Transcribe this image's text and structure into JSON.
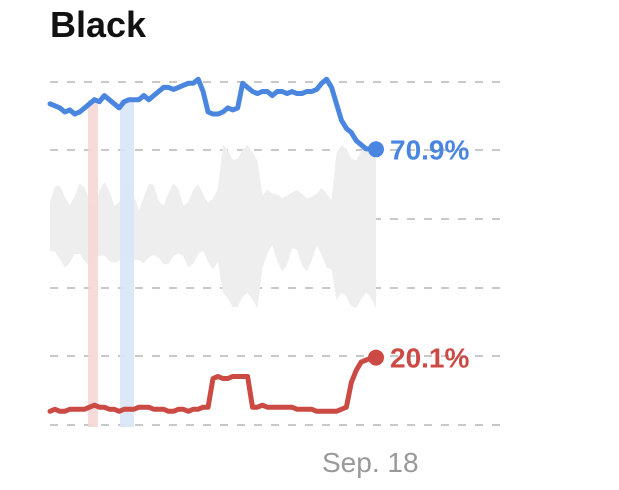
{
  "title": "Black",
  "colors": {
    "series_a": "#4a86e0",
    "series_b": "#cc4a44",
    "band": "#eeeeee",
    "grid": "#c8c8c8",
    "marker_red": "#f6d7d6",
    "marker_blue": "#d9e6f6"
  },
  "chart_data": {
    "type": "line",
    "xlabel": "",
    "ylabel": "",
    "x_tick_labels": [
      "Sep. 18"
    ],
    "grid": "dashed horizontal",
    "legend": "none (end labels)",
    "ylim": [
      0,
      100
    ],
    "x": [
      0,
      1,
      2,
      3,
      4,
      5,
      6,
      7,
      8,
      9,
      10,
      11,
      12,
      13,
      14,
      15,
      16,
      17,
      18,
      19,
      20,
      21,
      22,
      23,
      24,
      25,
      26,
      27,
      28,
      29,
      30,
      31,
      32,
      33,
      34,
      35,
      36,
      37,
      38,
      39,
      40,
      41,
      42,
      43,
      44,
      45,
      46,
      47,
      48,
      49,
      50,
      51,
      52,
      53,
      54,
      55,
      56,
      57,
      58,
      59,
      60,
      61,
      62,
      63,
      64,
      65,
      66
    ],
    "series": [
      {
        "values": [
          82,
          81.5,
          81,
          80,
          80.5,
          79.5,
          80,
          81,
          82,
          83,
          82.5,
          84,
          83,
          82,
          81,
          82.5,
          83,
          83,
          83,
          84,
          83,
          84,
          85,
          86,
          86,
          85.5,
          86,
          86.5,
          87,
          87,
          88,
          85,
          80,
          79.5,
          79.5,
          80,
          81,
          80.5,
          81,
          87,
          86,
          85,
          84.5,
          85,
          85,
          84,
          85,
          85,
          84.5,
          85,
          84.5,
          84.5,
          85,
          85,
          85.5,
          87,
          88,
          86,
          82,
          78,
          76,
          75,
          73,
          72,
          71,
          71,
          70.9
        ],
        "end_label": "70.9%",
        "color_key": "series_a"
      },
      {
        "values": [
          7,
          7.5,
          7,
          7,
          7.5,
          7.5,
          7.5,
          7.5,
          8,
          8.5,
          8,
          8,
          7.5,
          7.5,
          7,
          7.5,
          7.5,
          7.5,
          8,
          8,
          8,
          7.5,
          7.5,
          7.5,
          7,
          7,
          7.5,
          7.5,
          7,
          7.5,
          7.5,
          8,
          8,
          15,
          15.5,
          15,
          15,
          15.5,
          15.5,
          15.5,
          15.5,
          8,
          8,
          8.5,
          8,
          8,
          8,
          8,
          8,
          8,
          7.5,
          7.5,
          7.5,
          7.5,
          7,
          7,
          7,
          7,
          7,
          7.5,
          8,
          14,
          17,
          19,
          19.5,
          20,
          20.1
        ],
        "end_label": "20.1%",
        "color_key": "series_b"
      }
    ]
  }
}
